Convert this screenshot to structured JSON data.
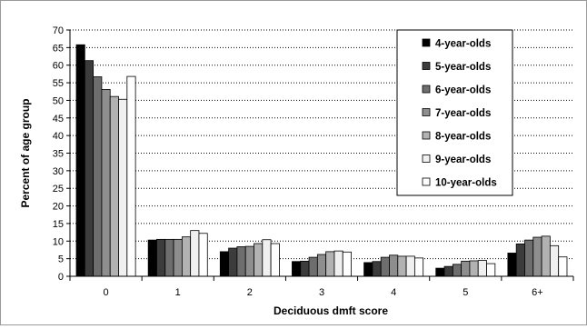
{
  "chart_data": {
    "type": "bar",
    "title": "",
    "xlabel": "Deciduous dmft score",
    "ylabel": "Percent of age group",
    "ylim": [
      0,
      70
    ],
    "yticks": [
      0,
      5,
      10,
      15,
      20,
      25,
      30,
      35,
      40,
      45,
      50,
      55,
      60,
      65,
      70
    ],
    "grid": "horizontal dotted",
    "legend_position": "top-right",
    "categories": [
      "0",
      "1",
      "2",
      "3",
      "4",
      "5",
      "6+"
    ],
    "series": [
      {
        "name": "4-year-olds",
        "color": "#000000",
        "values": [
          65.8,
          10.3,
          7.0,
          4.2,
          3.9,
          2.3,
          6.6
        ]
      },
      {
        "name": "5-year-olds",
        "color": "#3c3c3c",
        "values": [
          61.3,
          10.5,
          8.0,
          4.3,
          4.2,
          2.8,
          9.2
        ]
      },
      {
        "name": "6-year-olds",
        "color": "#6e6e6e",
        "values": [
          56.7,
          10.5,
          8.4,
          5.4,
          5.4,
          3.4,
          10.3
        ]
      },
      {
        "name": "7-year-olds",
        "color": "#8e8e8e",
        "values": [
          53.1,
          10.5,
          8.5,
          6.2,
          6.0,
          4.3,
          11.1
        ]
      },
      {
        "name": "8-year-olds",
        "color": "#b2b2b2",
        "values": [
          51.1,
          11.2,
          9.3,
          7.0,
          5.7,
          4.4,
          11.4
        ]
      },
      {
        "name": "9-year-olds",
        "color": "#f0f0f0",
        "values": [
          50.3,
          13.0,
          10.4,
          7.2,
          5.7,
          4.5,
          8.7
        ]
      },
      {
        "name": "10-year-olds",
        "color": "#ffffff",
        "values": [
          56.8,
          12.2,
          9.3,
          6.9,
          5.2,
          3.6,
          5.5
        ]
      }
    ]
  }
}
